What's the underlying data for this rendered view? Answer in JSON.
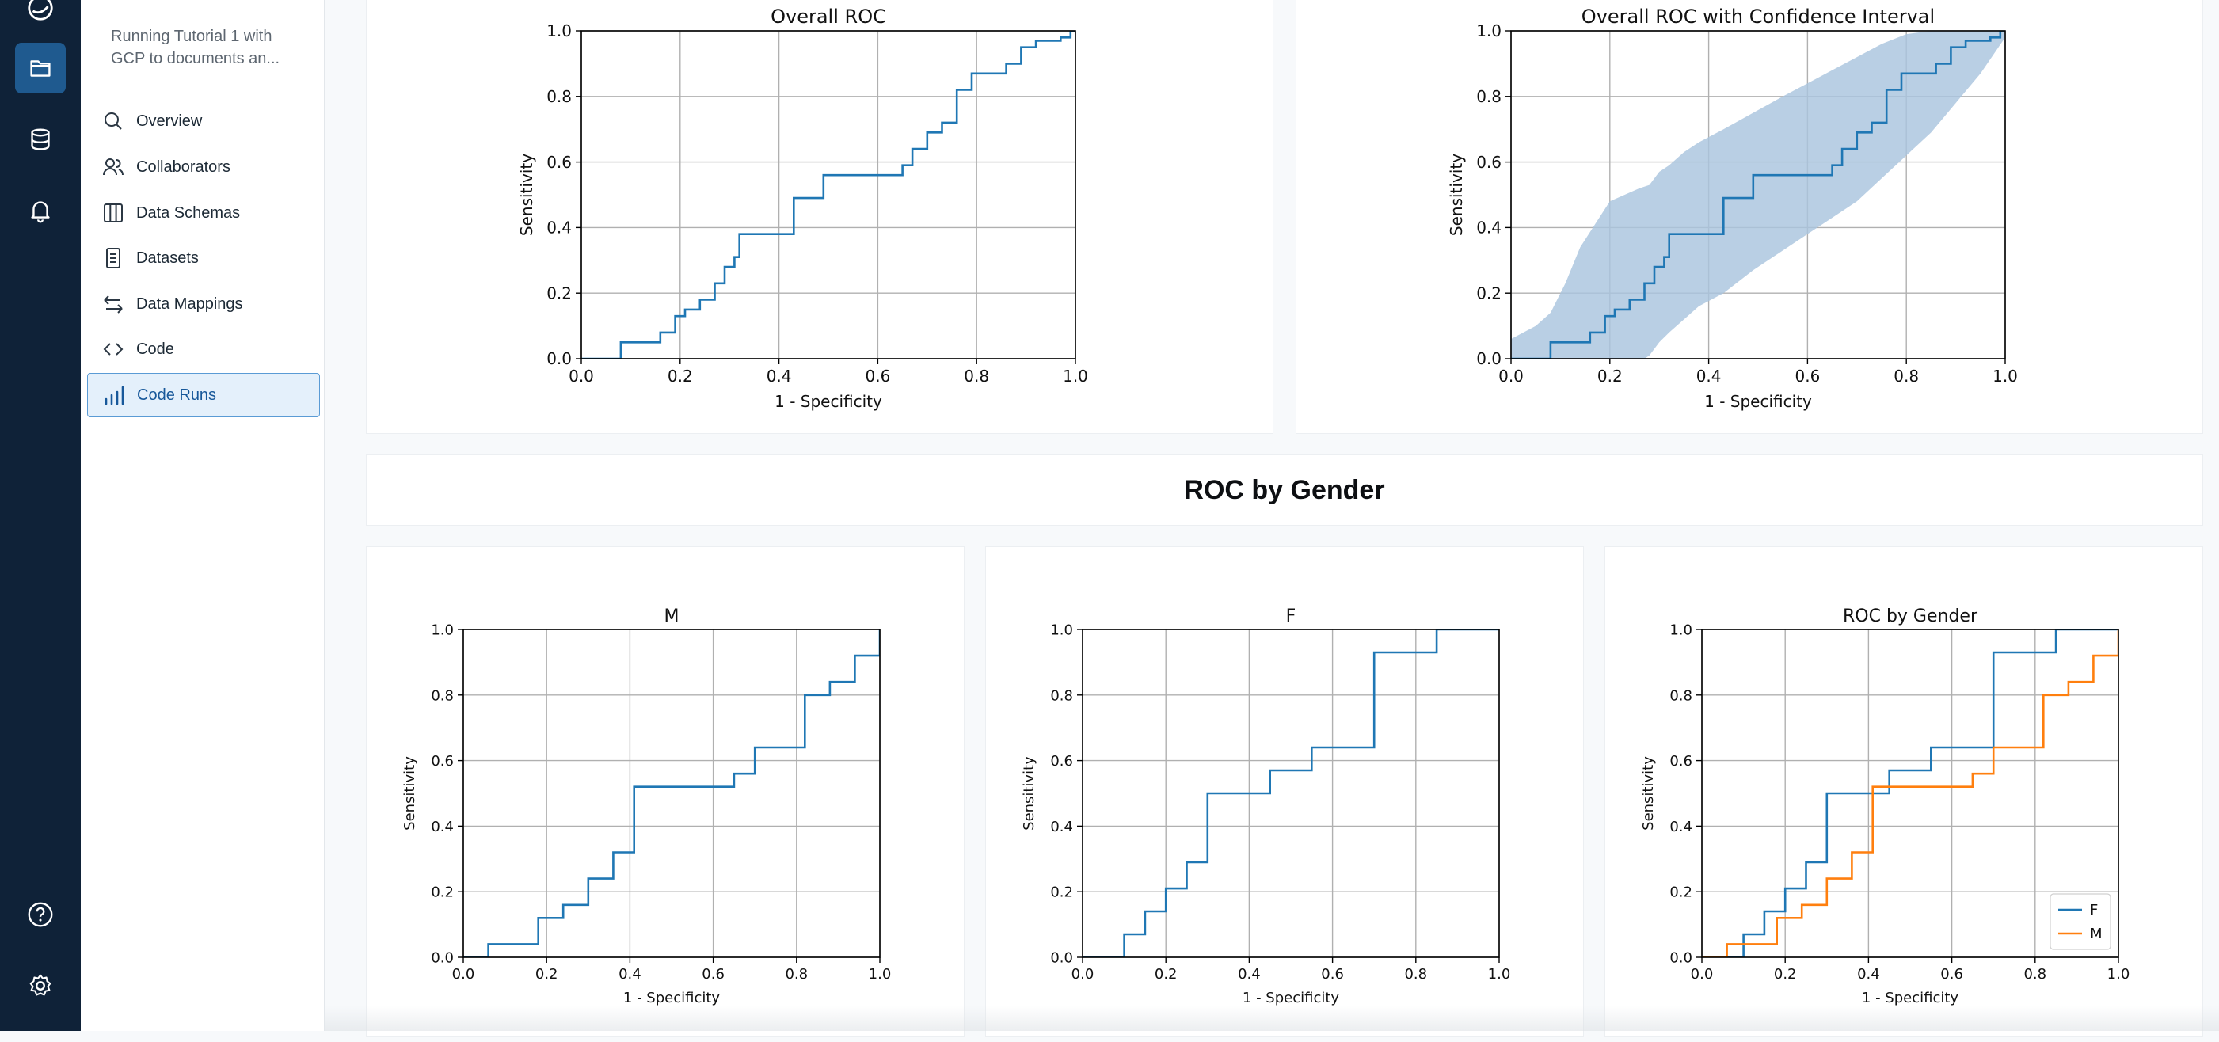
{
  "sidebar": {
    "project_description": "Running Tutorial 1 with GCP to documents an...",
    "items": [
      {
        "label": "Overview",
        "icon": "search-icon"
      },
      {
        "label": "Collaborators",
        "icon": "users-icon"
      },
      {
        "label": "Data Schemas",
        "icon": "columns-icon"
      },
      {
        "label": "Datasets",
        "icon": "document-icon"
      },
      {
        "label": "Data Mappings",
        "icon": "arrows-swap-icon"
      },
      {
        "label": "Code",
        "icon": "code-icon"
      },
      {
        "label": "Code Runs",
        "icon": "bar-chart-icon"
      }
    ],
    "active_item": "Code Runs"
  },
  "rail": {
    "icons": [
      "logo-icon",
      "folder-icon",
      "database-icon",
      "bell-icon",
      "help-icon",
      "settings-icon"
    ]
  },
  "section": {
    "title": "ROC by Gender"
  },
  "colors": {
    "blue": "#1f77b4",
    "orange": "#ff7f0e",
    "band": "#a9c4de",
    "accent": "#17589a"
  },
  "chart_data": [
    {
      "type": "line",
      "title": "Overall ROC",
      "xlabel": "1 - Specificity",
      "ylabel": "Sensitivity",
      "xlim": [
        0,
        1
      ],
      "ylim": [
        0,
        1
      ],
      "xticks": [
        "0.0",
        "0.2",
        "0.4",
        "0.6",
        "0.8",
        "1.0"
      ],
      "yticks": [
        "0.0",
        "0.2",
        "0.4",
        "0.6",
        "0.8",
        "1.0"
      ],
      "grid": true,
      "series": [
        {
          "x": [
            0,
            0.08,
            0.08,
            0.16,
            0.16,
            0.19,
            0.19,
            0.21,
            0.21,
            0.24,
            0.24,
            0.27,
            0.27,
            0.29,
            0.29,
            0.31,
            0.31,
            0.32,
            0.32,
            0.43,
            0.43,
            0.49,
            0.49,
            0.65,
            0.65,
            0.67,
            0.67,
            0.7,
            0.7,
            0.73,
            0.73,
            0.76,
            0.76,
            0.79,
            0.79,
            0.86,
            0.86,
            0.89,
            0.89,
            0.92,
            0.92,
            0.97,
            0.97,
            0.99,
            0.99,
            1.0
          ],
          "y": [
            0,
            0,
            0.05,
            0.05,
            0.08,
            0.08,
            0.13,
            0.13,
            0.15,
            0.15,
            0.18,
            0.18,
            0.23,
            0.23,
            0.28,
            0.28,
            0.31,
            0.31,
            0.38,
            0.38,
            0.49,
            0.49,
            0.56,
            0.56,
            0.59,
            0.59,
            0.64,
            0.64,
            0.69,
            0.69,
            0.72,
            0.72,
            0.82,
            0.82,
            0.87,
            0.87,
            0.9,
            0.9,
            0.95,
            0.95,
            0.97,
            0.97,
            0.98,
            0.98,
            1.0,
            1.0
          ]
        }
      ]
    },
    {
      "type": "area",
      "title": "Overall ROC with Confidence Interval",
      "xlabel": "1 - Specificity",
      "ylabel": "Sensitivity",
      "xlim": [
        0,
        1
      ],
      "ylim": [
        0,
        1
      ],
      "xticks": [
        "0.0",
        "0.2",
        "0.4",
        "0.6",
        "0.8",
        "1.0"
      ],
      "yticks": [
        "0.0",
        "0.2",
        "0.4",
        "0.6",
        "0.8",
        "1.0"
      ],
      "grid": true,
      "band": {
        "x": [
          0,
          0.05,
          0.08,
          0.11,
          0.14,
          0.17,
          0.2,
          0.23,
          0.26,
          0.28,
          0.3,
          0.32,
          0.35,
          0.38,
          0.43,
          0.49,
          0.55,
          0.6,
          0.65,
          0.7,
          0.75,
          0.8,
          0.85,
          0.9,
          0.95,
          1.0
        ],
        "upper": [
          0.06,
          0.1,
          0.14,
          0.23,
          0.34,
          0.41,
          0.48,
          0.5,
          0.52,
          0.53,
          0.57,
          0.59,
          0.63,
          0.66,
          0.7,
          0.75,
          0.8,
          0.84,
          0.88,
          0.92,
          0.96,
          0.99,
          1.0,
          1.0,
          1.0,
          1.0
        ],
        "lower": [
          -0.08,
          -0.1,
          -0.1,
          -0.09,
          -0.06,
          -0.04,
          -0.03,
          -0.02,
          -0.01,
          0.01,
          0.05,
          0.08,
          0.12,
          0.16,
          0.2,
          0.27,
          0.33,
          0.38,
          0.43,
          0.48,
          0.55,
          0.62,
          0.69,
          0.78,
          0.87,
          0.98
        ]
      },
      "series": [
        {
          "x": [
            0,
            0.08,
            0.08,
            0.16,
            0.16,
            0.19,
            0.19,
            0.21,
            0.21,
            0.24,
            0.24,
            0.27,
            0.27,
            0.29,
            0.29,
            0.31,
            0.31,
            0.32,
            0.32,
            0.43,
            0.43,
            0.49,
            0.49,
            0.65,
            0.65,
            0.67,
            0.67,
            0.7,
            0.7,
            0.73,
            0.73,
            0.76,
            0.76,
            0.79,
            0.79,
            0.86,
            0.86,
            0.89,
            0.89,
            0.92,
            0.92,
            0.97,
            0.97,
            0.99,
            0.99,
            1.0
          ],
          "y": [
            0,
            0,
            0.05,
            0.05,
            0.08,
            0.08,
            0.13,
            0.13,
            0.15,
            0.15,
            0.18,
            0.18,
            0.23,
            0.23,
            0.28,
            0.28,
            0.31,
            0.31,
            0.38,
            0.38,
            0.49,
            0.49,
            0.56,
            0.56,
            0.59,
            0.59,
            0.64,
            0.64,
            0.69,
            0.69,
            0.72,
            0.72,
            0.82,
            0.82,
            0.87,
            0.87,
            0.9,
            0.9,
            0.95,
            0.95,
            0.97,
            0.97,
            0.98,
            0.98,
            1.0,
            1.0
          ]
        }
      ]
    },
    {
      "type": "line",
      "title": "M",
      "xlabel": "1 - Specificity",
      "ylabel": "Sensitivity",
      "xlim": [
        0,
        1
      ],
      "ylim": [
        0,
        1
      ],
      "xticks": [
        "0.0",
        "0.2",
        "0.4",
        "0.6",
        "0.8",
        "1.0"
      ],
      "yticks": [
        "0.0",
        "0.2",
        "0.4",
        "0.6",
        "0.8",
        "1.0"
      ],
      "grid": true,
      "series": [
        {
          "x": [
            0,
            0.06,
            0.06,
            0.18,
            0.18,
            0.24,
            0.24,
            0.3,
            0.3,
            0.36,
            0.36,
            0.41,
            0.41,
            0.65,
            0.65,
            0.7,
            0.7,
            0.82,
            0.82,
            0.88,
            0.88,
            0.94,
            0.94,
            1.0,
            1.0
          ],
          "y": [
            0,
            0,
            0.04,
            0.04,
            0.12,
            0.12,
            0.16,
            0.16,
            0.24,
            0.24,
            0.32,
            0.32,
            0.52,
            0.52,
            0.56,
            0.56,
            0.64,
            0.64,
            0.8,
            0.8,
            0.84,
            0.84,
            0.92,
            0.92,
            1.0
          ]
        }
      ]
    },
    {
      "type": "line",
      "title": "F",
      "xlabel": "1 - Specificity",
      "ylabel": "Sensitivity",
      "xlim": [
        0,
        1
      ],
      "ylim": [
        0,
        1
      ],
      "xticks": [
        "0.0",
        "0.2",
        "0.4",
        "0.6",
        "0.8",
        "1.0"
      ],
      "yticks": [
        "0.0",
        "0.2",
        "0.4",
        "0.6",
        "0.8",
        "1.0"
      ],
      "grid": true,
      "series": [
        {
          "x": [
            0,
            0.1,
            0.1,
            0.15,
            0.15,
            0.2,
            0.2,
            0.25,
            0.25,
            0.3,
            0.3,
            0.45,
            0.45,
            0.55,
            0.55,
            0.7,
            0.7,
            0.85,
            0.85,
            1.0
          ],
          "y": [
            0,
            0,
            0.07,
            0.07,
            0.14,
            0.14,
            0.21,
            0.21,
            0.29,
            0.29,
            0.5,
            0.5,
            0.57,
            0.57,
            0.64,
            0.64,
            0.93,
            0.93,
            1.0,
            1.0
          ]
        }
      ]
    },
    {
      "type": "line",
      "title": "ROC by Gender",
      "xlabel": "1 - Specificity",
      "ylabel": "Sensitivity",
      "xlim": [
        0,
        1
      ],
      "ylim": [
        0,
        1
      ],
      "xticks": [
        "0.0",
        "0.2",
        "0.4",
        "0.6",
        "0.8",
        "1.0"
      ],
      "yticks": [
        "0.0",
        "0.2",
        "0.4",
        "0.6",
        "0.8",
        "1.0"
      ],
      "grid": true,
      "legend": "lower-right",
      "series": [
        {
          "name": "F",
          "x": [
            0,
            0.1,
            0.1,
            0.15,
            0.15,
            0.2,
            0.2,
            0.25,
            0.25,
            0.3,
            0.3,
            0.45,
            0.45,
            0.55,
            0.55,
            0.7,
            0.7,
            0.85,
            0.85,
            1.0
          ],
          "y": [
            0,
            0,
            0.07,
            0.07,
            0.14,
            0.14,
            0.21,
            0.21,
            0.29,
            0.29,
            0.5,
            0.5,
            0.57,
            0.57,
            0.64,
            0.64,
            0.93,
            0.93,
            1.0,
            1.0
          ]
        },
        {
          "name": "M",
          "x": [
            0,
            0.06,
            0.06,
            0.18,
            0.18,
            0.24,
            0.24,
            0.3,
            0.3,
            0.36,
            0.36,
            0.41,
            0.41,
            0.65,
            0.65,
            0.7,
            0.7,
            0.82,
            0.82,
            0.88,
            0.88,
            0.94,
            0.94,
            1.0,
            1.0
          ],
          "y": [
            0,
            0,
            0.04,
            0.04,
            0.12,
            0.12,
            0.16,
            0.16,
            0.24,
            0.24,
            0.32,
            0.32,
            0.52,
            0.52,
            0.56,
            0.56,
            0.64,
            0.64,
            0.8,
            0.8,
            0.84,
            0.84,
            0.92,
            0.92,
            1.0
          ]
        }
      ]
    }
  ]
}
